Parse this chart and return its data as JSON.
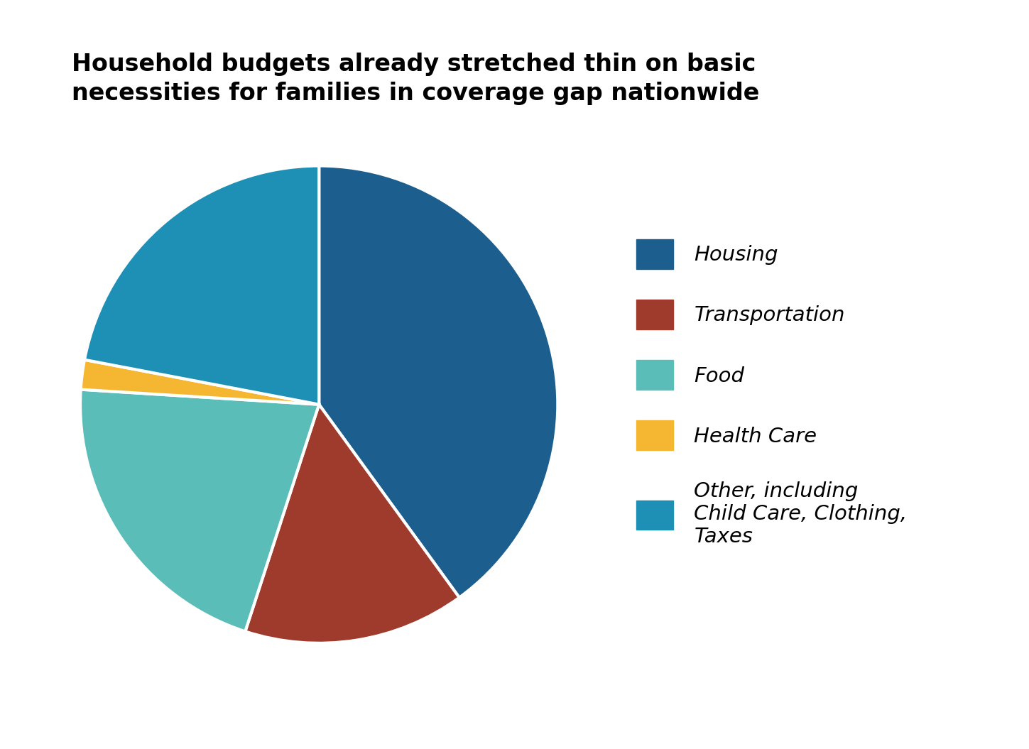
{
  "title": "Household budgets already stretched thin on basic\nnecessities for families in coverage gap nationwide",
  "slices": [
    {
      "label": "Housing",
      "value": 40,
      "color": "#1C5F8E"
    },
    {
      "label": "Transportation",
      "value": 15,
      "color": "#9E3B2C"
    },
    {
      "label": "Food",
      "value": 21,
      "color": "#5BBDB8"
    },
    {
      "label": "Health Care",
      "value": 2,
      "color": "#F5B731"
    },
    {
      "label": "Other, including\nChild Care, Clothing,\nTaxes",
      "value": 22,
      "color": "#1E8FB5"
    }
  ],
  "legend_labels": [
    "Housing",
    "Transportation",
    "Food",
    "Health Care",
    "Other, including\nChild Care, Clothing,\nTaxes"
  ],
  "legend_colors": [
    "#1C5F8E",
    "#9E3B2C",
    "#5BBDB8",
    "#F5B731",
    "#1E8FB5"
  ],
  "startangle": 90,
  "title_fontsize": 24,
  "legend_fontsize": 21,
  "background_color": "#FFFFFF",
  "wedge_edge_color": "#FFFFFF",
  "wedge_linewidth": 3
}
